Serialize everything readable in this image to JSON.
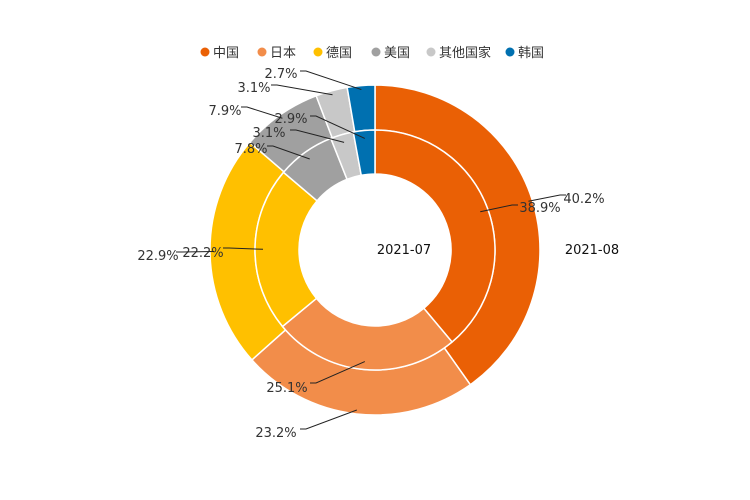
{
  "chart_data": {
    "type": "pie",
    "variant": "nested-donut",
    "categories": [
      "中国",
      "日本",
      "德国",
      "美国",
      "其他国家",
      "韩国"
    ],
    "colors": [
      "#EA6005",
      "#F28D4A",
      "#FFC000",
      "#A0A0A0",
      "#C8C8C8",
      "#0070B0"
    ],
    "series": [
      {
        "name": "2021-07",
        "ring": "inner",
        "values": [
          38.9,
          25.1,
          22.2,
          7.8,
          3.1,
          2.9
        ],
        "labels": [
          "38.9%",
          "25.1%",
          "22.2%",
          "7.8%",
          "3.1%",
          "2.9%"
        ]
      },
      {
        "name": "2021-08",
        "ring": "outer",
        "values": [
          40.2,
          23.2,
          22.9,
          7.9,
          3.1,
          2.7
        ],
        "labels": [
          "40.2%",
          "23.2%",
          "22.9%",
          "7.9%",
          "3.1%",
          "2.7%"
        ]
      }
    ],
    "legend_position": "top"
  }
}
